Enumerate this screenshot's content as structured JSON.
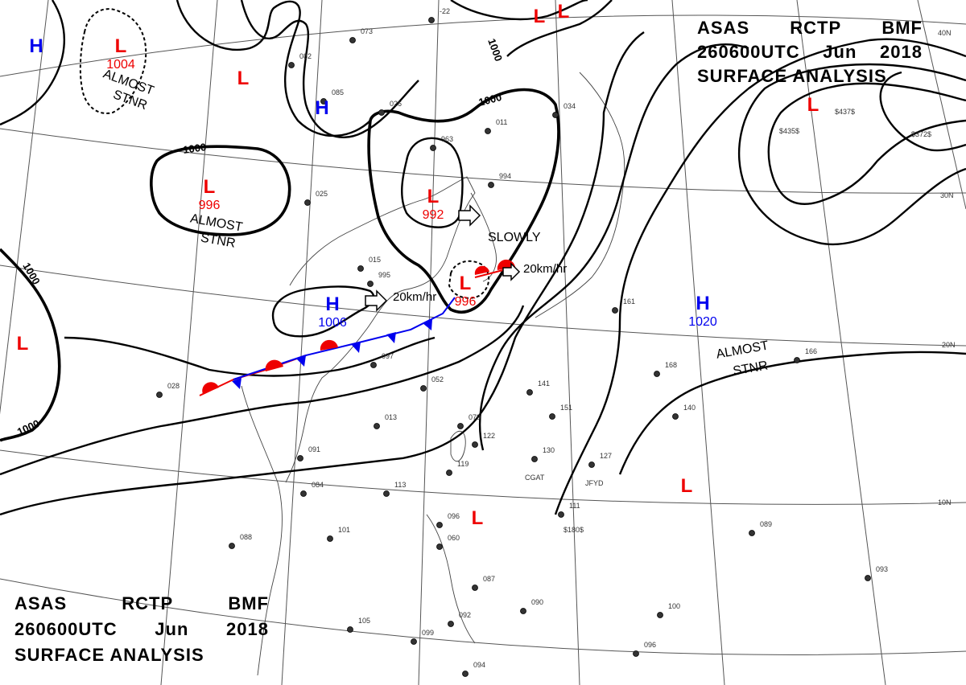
{
  "header_top": {
    "line1_parts": [
      "ASAS",
      "RCTP",
      "BMF"
    ],
    "line2_parts": [
      "260600UTC",
      "Jun",
      "2018"
    ],
    "line3": "SURFACE ANALYSIS"
  },
  "header_bottom": {
    "line1_parts": [
      "ASAS",
      "RCTP",
      "BMF"
    ],
    "line2_parts": [
      "260600UTC",
      "Jun",
      "2018"
    ],
    "line3": "SURFACE ANALYSIS"
  },
  "lat_labels": [
    "40N",
    "30N",
    "20N",
    "10N"
  ],
  "isobar_labels": [
    "1000",
    "1000",
    "1000",
    "1000",
    "1000"
  ],
  "pressure_centers": [
    {
      "symbol": "H",
      "value": "",
      "color": "#0000ee"
    },
    {
      "symbol": "L",
      "value": "1004",
      "color": "#ee0000",
      "note_1": "ALMOST",
      "note_2": "STNR"
    },
    {
      "symbol": "L",
      "value": "",
      "color": "#ee0000"
    },
    {
      "symbol": "H",
      "value": "",
      "color": "#0000ee"
    },
    {
      "symbol": "L",
      "value": "996",
      "color": "#ee0000",
      "note_1": "ALMOST",
      "note_2": "STNR"
    },
    {
      "symbol": "L",
      "value": "992",
      "color": "#ee0000",
      "note_1": "SLOWLY",
      "note_2": ""
    },
    {
      "symbol": "L",
      "value": "996",
      "color": "#ee0000",
      "note_1": "20km/hr",
      "note_2": ""
    },
    {
      "symbol": "H",
      "value": "1006",
      "color": "#0000ee",
      "note_1": "20km/hr",
      "note_2": ""
    },
    {
      "symbol": "L",
      "value": "",
      "color": "#ee0000"
    },
    {
      "symbol": "L",
      "value": "",
      "color": "#ee0000"
    },
    {
      "symbol": "H",
      "value": "1020",
      "color": "#0000ee",
      "note_1": "ALMOST",
      "note_2": "STNR"
    },
    {
      "symbol": "L",
      "value": "",
      "color": "#ee0000"
    },
    {
      "symbol": "L",
      "value": "",
      "color": "#ee0000"
    },
    {
      "symbol": "L",
      "value": "",
      "color": "#ee0000"
    },
    {
      "symbol": "L",
      "value": "",
      "color": "#ee0000"
    }
  ],
  "motion_labels": [
    "SLOWLY",
    "20km/hr",
    "20km/hr"
  ],
  "station_values": [
    "-22",
    "073",
    "082",
    "085",
    "026",
    "963",
    "011",
    "034",
    "994",
    "025",
    "028",
    "015",
    "995",
    "013",
    "097",
    "052",
    "079",
    "122",
    "119",
    "113",
    "084",
    "091",
    "101",
    "088",
    "096",
    "060",
    "087",
    "090",
    "092",
    "105",
    "099",
    "094",
    "130",
    "127",
    "111",
    "151",
    "141",
    "161",
    "168",
    "140",
    "166",
    "089",
    "093",
    "100",
    "096"
  ],
  "ship_ids": [
    "CGAT",
    "JFYD",
    "$180$",
    "$372$",
    "$437$",
    "$435$"
  ],
  "colors": {
    "low": "#ee0000",
    "high": "#0000ee",
    "front_warm": "#ee0000",
    "front_cold": "#0000ee",
    "isobar": "#000000"
  }
}
